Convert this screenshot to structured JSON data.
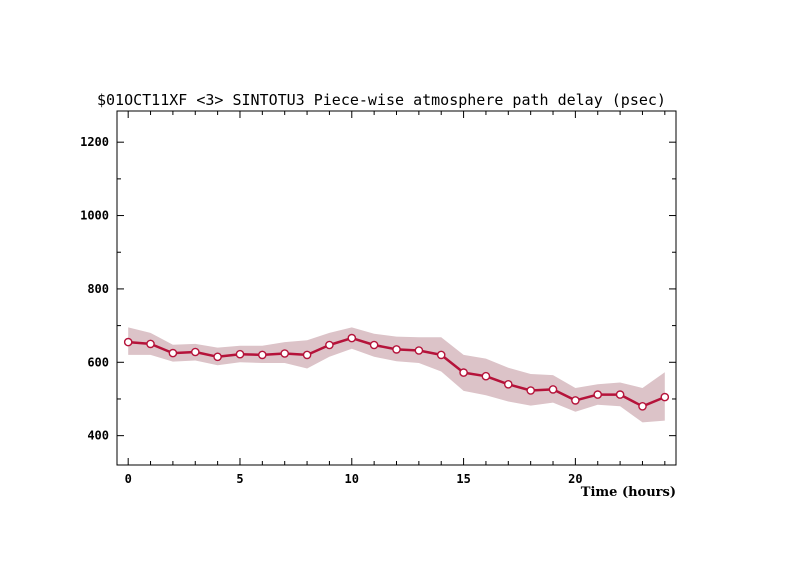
{
  "chart_data": {
    "type": "line",
    "title": "$01OCT11XF <3>  SINTOTU3  Piece-wise atmosphere path delay (psec)",
    "xlabel": "Time (hours)",
    "ylabel": "",
    "xlim": [
      -0.5,
      24.5
    ],
    "ylim": [
      320,
      1285
    ],
    "x_ticks": [
      0,
      5,
      10,
      15,
      20
    ],
    "y_ticks": [
      400,
      600,
      800,
      1000,
      1200
    ],
    "x_tick_labels": [
      "0",
      "5",
      "10",
      "15",
      "20"
    ],
    "y_tick_labels": [
      "400",
      "600",
      "800",
      "1000",
      "1200"
    ],
    "grid": false,
    "x": [
      0,
      1,
      2,
      3,
      4,
      5,
      6,
      7,
      8,
      9,
      10,
      11,
      12,
      13,
      14,
      15,
      16,
      17,
      18,
      19,
      20,
      21,
      22,
      23,
      24
    ],
    "series": [
      {
        "values": [
          655,
          650,
          625,
          628,
          615,
          622,
          620,
          624,
          620,
          647,
          666,
          647,
          635,
          632,
          620,
          572,
          562,
          540,
          523,
          526,
          496,
          512,
          512,
          480,
          505
        ],
        "band_upper": [
          695,
          680,
          648,
          650,
          640,
          645,
          645,
          655,
          660,
          680,
          695,
          678,
          670,
          668,
          668,
          620,
          610,
          585,
          568,
          565,
          530,
          540,
          545,
          530,
          573
        ],
        "band_lower": [
          620,
          620,
          602,
          605,
          592,
          600,
          598,
          598,
          583,
          615,
          637,
          615,
          603,
          598,
          575,
          522,
          510,
          493,
          482,
          490,
          465,
          484,
          480,
          436,
          441
        ]
      }
    ],
    "colors": {
      "line": "#b5133a",
      "band": "#dcc3c8",
      "marker_fill": "#ffffff",
      "axis": "#000000"
    }
  }
}
